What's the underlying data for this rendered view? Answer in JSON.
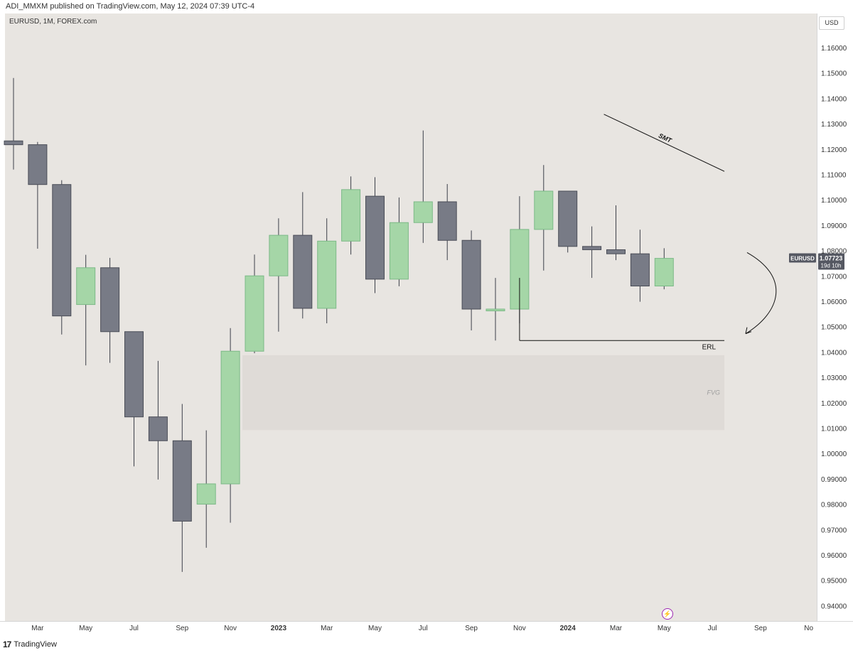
{
  "caption": "ADI_MMXM published on TradingView.com, May 12, 2024 07:39 UTC-4",
  "symbol_line": "EURUSD, 1M, FOREX.com",
  "currency": "USD",
  "footer": {
    "logo_text": "TradingView"
  },
  "price_label": {
    "symbol": "EURUSD",
    "price": "1.07723",
    "countdown": "19d 10h"
  },
  "annotations": {
    "smt": "SMT",
    "erl": "ERL",
    "fvg": "FVG"
  },
  "colors": {
    "up": "#a5d6a7",
    "down": "#787b86",
    "background": "#e8e5e1",
    "fvg_zone": "#dfdbd7"
  },
  "chart_data": {
    "type": "candlestick",
    "symbol": "EURUSD",
    "timeframe": "1M",
    "y_ticks": [
      "1.16000",
      "1.15000",
      "1.14000",
      "1.13000",
      "1.12000",
      "1.11000",
      "1.10000",
      "1.09000",
      "1.08000",
      "1.07000",
      "1.06000",
      "1.05000",
      "1.04000",
      "1.03000",
      "1.02000",
      "1.01000",
      "1.00000",
      "0.99000",
      "0.98000",
      "0.97000",
      "0.96000",
      "0.95000",
      "0.94000"
    ],
    "x_ticks": [
      {
        "label": "Mar",
        "index": 1
      },
      {
        "label": "May",
        "index": 3
      },
      {
        "label": "Jul",
        "index": 5
      },
      {
        "label": "Sep",
        "index": 7
      },
      {
        "label": "Nov",
        "index": 9
      },
      {
        "label": "2023",
        "index": 11
      },
      {
        "label": "Mar",
        "index": 13
      },
      {
        "label": "May",
        "index": 15
      },
      {
        "label": "Jul",
        "index": 17
      },
      {
        "label": "Sep",
        "index": 19
      },
      {
        "label": "Nov",
        "index": 21
      },
      {
        "label": "2024",
        "index": 23
      },
      {
        "label": "Mar",
        "index": 25
      },
      {
        "label": "May",
        "index": 27
      },
      {
        "label": "Jul",
        "index": 29
      },
      {
        "label": "Sep",
        "index": 31
      },
      {
        "label": "No",
        "index": 33
      }
    ],
    "ohlc": [
      {
        "t": "2022-01",
        "o": 1.1235,
        "h": 1.1483,
        "l": 1.1122,
        "c": 1.122
      },
      {
        "t": "2022-02",
        "o": 1.122,
        "h": 1.1231,
        "l": 1.081,
        "c": 1.1063
      },
      {
        "t": "2022-03",
        "o": 1.1063,
        "h": 1.108,
        "l": 1.0472,
        "c": 1.0545
      },
      {
        "t": "2022-04",
        "o": 1.059,
        "h": 1.0786,
        "l": 1.035,
        "c": 1.0735
      },
      {
        "t": "2022-05",
        "o": 1.0735,
        "h": 1.0774,
        "l": 1.036,
        "c": 1.0483
      },
      {
        "t": "2022-06",
        "o": 1.0483,
        "h": 1.0483,
        "l": 0.9952,
        "c": 1.0147
      },
      {
        "t": "2022-07",
        "o": 1.0147,
        "h": 1.0368,
        "l": 0.99,
        "c": 1.0053
      },
      {
        "t": "2022-08",
        "o": 1.0053,
        "h": 1.0198,
        "l": 0.9536,
        "c": 0.9736
      },
      {
        "t": "2022-09",
        "o": 0.9803,
        "h": 1.0094,
        "l": 0.9631,
        "c": 0.9883
      },
      {
        "t": "2022-10",
        "o": 0.9883,
        "h": 1.0497,
        "l": 0.973,
        "c": 1.0406
      },
      {
        "t": "2022-11",
        "o": 1.0406,
        "h": 1.0787,
        "l": 1.0398,
        "c": 1.0703
      },
      {
        "t": "2022-12",
        "o": 1.0703,
        "h": 1.093,
        "l": 1.0483,
        "c": 1.0863
      },
      {
        "t": "2023-01",
        "o": 1.0863,
        "h": 1.1033,
        "l": 1.0535,
        "c": 1.0575
      },
      {
        "t": "2023-02",
        "o": 1.0575,
        "h": 1.093,
        "l": 1.0516,
        "c": 1.084
      },
      {
        "t": "2023-03",
        "o": 1.084,
        "h": 1.1095,
        "l": 1.0787,
        "c": 1.1043
      },
      {
        "t": "2023-04",
        "o": 1.1017,
        "h": 1.1092,
        "l": 1.0635,
        "c": 1.069
      },
      {
        "t": "2023-05",
        "o": 1.069,
        "h": 1.1012,
        "l": 1.0662,
        "c": 1.0913
      },
      {
        "t": "2023-06",
        "o": 1.0913,
        "h": 1.1276,
        "l": 1.0833,
        "c": 1.0995
      },
      {
        "t": "2023-07",
        "o": 1.0995,
        "h": 1.1065,
        "l": 1.0765,
        "c": 1.0843
      },
      {
        "t": "2023-08",
        "o": 1.0843,
        "h": 1.0882,
        "l": 1.0488,
        "c": 1.0572
      },
      {
        "t": "2023-09",
        "o": 1.0565,
        "h": 1.0695,
        "l": 1.0448,
        "c": 1.0572
      },
      {
        "t": "2023-10",
        "o": 1.0572,
        "h": 1.1017,
        "l": 1.0516,
        "c": 1.0886
      },
      {
        "t": "2023-11",
        "o": 1.0886,
        "h": 1.114,
        "l": 1.0724,
        "c": 1.1037
      },
      {
        "t": "2023-12",
        "o": 1.1037,
        "h": 1.1037,
        "l": 1.0795,
        "c": 1.0819
      },
      {
        "t": "2024-01",
        "o": 1.0819,
        "h": 1.0898,
        "l": 1.0695,
        "c": 1.0806
      },
      {
        "t": "2024-02",
        "o": 1.0806,
        "h": 1.0981,
        "l": 1.0765,
        "c": 1.079
      },
      {
        "t": "2024-03",
        "o": 1.079,
        "h": 1.0885,
        "l": 1.0601,
        "c": 1.0663
      },
      {
        "t": "2024-04",
        "o": 1.0663,
        "h": 1.0812,
        "l": 1.065,
        "c": 1.0772
      }
    ],
    "drawings": {
      "smt_line": {
        "from": {
          "index": 24.5,
          "price": 1.134
        },
        "to": {
          "index": 29.5,
          "price": 1.1115
        }
      },
      "erl_line": {
        "from": {
          "index": 21,
          "price": 1.0448
        },
        "to": {
          "index": 29.5,
          "price": 1.0448
        }
      },
      "fvg_zone": {
        "from_index": 9.5,
        "to_index": 29.5,
        "top": 1.039,
        "bottom": 1.0095
      },
      "arrow_curve": {
        "start": {
          "index": 30.5,
          "price": 1.0795
        },
        "end": {
          "index": 30.5,
          "price": 1.0475
        }
      }
    }
  }
}
